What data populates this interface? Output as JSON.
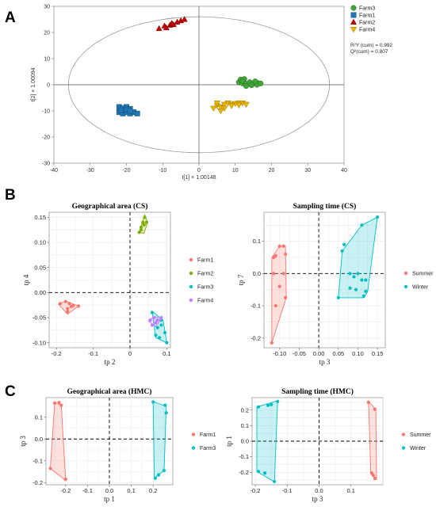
{
  "panels": [
    {
      "label": "A"
    },
    {
      "label": "B"
    },
    {
      "label": "C"
    }
  ],
  "chart_data": [
    {
      "type": "scatter",
      "panel": "A",
      "title": "",
      "xlabel": "t[1] × 1.00148",
      "ylabel": "t[2] × 1.00094",
      "xlim": [
        -40,
        40
      ],
      "ylim": [
        -30,
        30
      ],
      "xticks": [
        -40,
        -30,
        -20,
        -10,
        0,
        10,
        20,
        30,
        40
      ],
      "yticks": [
        -30,
        -20,
        -10,
        0,
        10,
        20,
        30
      ],
      "ellipse": {
        "rx": 36,
        "ry": 26
      },
      "legend_position": "top-right",
      "stats": [
        "R²Y (cum) = 0.992",
        "Q²(cum) = 0.807"
      ],
      "series": [
        {
          "name": "Farm3",
          "marker": "circle",
          "color": "#3fa535",
          "points": [
            [
              11,
              1
            ],
            [
              12,
              0.5
            ],
            [
              13,
              0.3
            ],
            [
              14,
              1
            ],
            [
              15,
              0.5
            ],
            [
              16,
              0.8
            ],
            [
              11.5,
              2
            ],
            [
              12.5,
              2.2
            ],
            [
              13,
              -0.5
            ],
            [
              14.5,
              -0.2
            ],
            [
              16,
              0
            ],
            [
              17,
              0.5
            ],
            [
              12,
              1.5
            ],
            [
              15.5,
              1.3
            ]
          ]
        },
        {
          "name": "Farm1",
          "marker": "square",
          "color": "#1f77b4",
          "points": [
            [
              -22,
              -8.5
            ],
            [
              -21,
              -9
            ],
            [
              -20,
              -8.5
            ],
            [
              -19,
              -9.2
            ],
            [
              -22,
              -10.5
            ],
            [
              -21,
              -11
            ],
            [
              -20,
              -10.5
            ],
            [
              -19,
              -11
            ],
            [
              -18,
              -10.5
            ],
            [
              -17,
              -11
            ],
            [
              -21.5,
              -9.8
            ],
            [
              -20,
              -9.5
            ],
            [
              -19,
              -10
            ]
          ]
        },
        {
          "name": "Farm2",
          "marker": "triangle-up",
          "color": "#c00000",
          "points": [
            [
              -11,
              21.5
            ],
            [
              -9.5,
              22.5
            ],
            [
              -8,
              22.8
            ],
            [
              -7,
              23
            ],
            [
              -6,
              24
            ],
            [
              -5,
              24.5
            ],
            [
              -4,
              25
            ],
            [
              -9,
              21.8
            ],
            [
              -7.5,
              23.5
            ]
          ]
        },
        {
          "name": "Farm4",
          "marker": "triangle-down",
          "color": "#e8b400",
          "points": [
            [
              4,
              -9
            ],
            [
              5,
              -8
            ],
            [
              6,
              -8.5
            ],
            [
              7,
              -7.5
            ],
            [
              8,
              -7
            ],
            [
              9,
              -7.5
            ],
            [
              10,
              -7.2
            ],
            [
              11,
              -7
            ],
            [
              12,
              -7
            ],
            [
              13,
              -7.5
            ],
            [
              5,
              -7
            ],
            [
              7,
              -9
            ],
            [
              9,
              -8
            ],
            [
              11,
              -7.8
            ],
            [
              6,
              -10
            ]
          ]
        }
      ]
    },
    {
      "type": "scatter",
      "panel": "B-left",
      "title": "Geographical area (CS)",
      "xlabel": "tp 2",
      "ylabel": "tp 4",
      "xlim": [
        -0.22,
        0.11
      ],
      "ylim": [
        -0.11,
        0.16
      ],
      "xticks": [
        -0.2,
        -0.1,
        0.0,
        0.1
      ],
      "xtick_labels": [
        "-0.2",
        "-0.1",
        "0",
        "0.1"
      ],
      "yticks": [
        -0.1,
        -0.05,
        0.0,
        0.05,
        0.1,
        0.15
      ],
      "yticks_labels": [
        "-0.10",
        "-0.05",
        "0.00",
        "0.05",
        "0.10",
        "0.15"
      ],
      "legend_position": "right",
      "series": [
        {
          "name": "Farm1",
          "color": "#f8766d",
          "points": [
            [
              -0.19,
              -0.022
            ],
            [
              -0.175,
              -0.018
            ],
            [
              -0.165,
              -0.022
            ],
            [
              -0.17,
              -0.038
            ],
            [
              -0.155,
              -0.026
            ],
            [
              -0.14,
              -0.027
            ],
            [
              -0.17,
              -0.032
            ],
            [
              -0.16,
              -0.028
            ]
          ],
          "hull": [
            [
              -0.195,
              -0.023
            ],
            [
              -0.175,
              -0.017
            ],
            [
              -0.14,
              -0.027
            ],
            [
              -0.17,
              -0.043
            ]
          ]
        },
        {
          "name": "Farm2",
          "color": "#7cae00",
          "points": [
            [
              0.025,
              0.12
            ],
            [
              0.03,
              0.13
            ],
            [
              0.035,
              0.14
            ],
            [
              0.04,
              0.15
            ],
            [
              0.045,
              0.14
            ],
            [
              0.03,
              0.125
            ],
            [
              0.038,
              0.135
            ]
          ],
          "hull": [
            [
              0.025,
              0.12
            ],
            [
              0.04,
              0.155
            ],
            [
              0.048,
              0.14
            ],
            [
              0.038,
              0.118
            ]
          ]
        },
        {
          "name": "Farm3",
          "color": "#00bfc4",
          "points": [
            [
              0.06,
              -0.04
            ],
            [
              0.075,
              -0.07
            ],
            [
              0.085,
              -0.065
            ],
            [
              0.095,
              -0.08
            ],
            [
              0.1,
              -0.1
            ],
            [
              0.08,
              -0.09
            ],
            [
              0.07,
              -0.085
            ],
            [
              0.085,
              -0.055
            ]
          ],
          "hull": [
            [
              0.06,
              -0.037
            ],
            [
              0.09,
              -0.055
            ],
            [
              0.1,
              -0.1
            ],
            [
              0.07,
              -0.09
            ]
          ]
        },
        {
          "name": "Farm4",
          "color": "#c77cff",
          "points": [
            [
              0.055,
              -0.055
            ],
            [
              0.065,
              -0.05
            ],
            [
              0.075,
              -0.055
            ],
            [
              0.085,
              -0.05
            ],
            [
              0.06,
              -0.065
            ],
            [
              0.07,
              -0.06
            ]
          ],
          "hull": [
            [
              0.05,
              -0.057
            ],
            [
              0.065,
              -0.048
            ],
            [
              0.088,
              -0.05
            ],
            [
              0.07,
              -0.068
            ]
          ]
        }
      ]
    },
    {
      "type": "scatter",
      "panel": "B-right",
      "title": "Sampling time (CS)",
      "xlabel": "tp 3",
      "ylabel": "tp 7",
      "xlim": [
        -0.14,
        0.17
      ],
      "ylim": [
        -0.23,
        0.19
      ],
      "xticks": [
        -0.1,
        -0.05,
        0.0,
        0.05,
        0.1,
        0.15
      ],
      "xtick_labels": [
        "-0.10",
        "-0.05",
        "0.00",
        "0.05",
        "0.10",
        "0.15"
      ],
      "yticks": [
        -0.2,
        -0.1,
        0.0,
        0.1
      ],
      "ytick_labels": [
        "-0.2",
        "-0.1",
        "0.0",
        "0.1"
      ],
      "legend_position": "right",
      "series": [
        {
          "name": "Summer",
          "color": "#f8766d",
          "points": [
            [
              -0.12,
              -0.215
            ],
            [
              -0.115,
              0.05
            ],
            [
              -0.11,
              0.055
            ],
            [
              -0.1,
              0.085
            ],
            [
              -0.09,
              0.085
            ],
            [
              -0.085,
              0.06
            ],
            [
              -0.09,
              0.0
            ],
            [
              -0.1,
              -0.04
            ],
            [
              -0.085,
              -0.075
            ],
            [
              -0.11,
              -0.1
            ],
            [
              -0.115,
              0.0
            ]
          ],
          "hull": [
            [
              -0.12,
              -0.215
            ],
            [
              -0.12,
              0.05
            ],
            [
              -0.1,
              0.085
            ],
            [
              -0.085,
              0.085
            ],
            [
              -0.083,
              -0.075
            ]
          ]
        },
        {
          "name": "Winter",
          "color": "#00bfc4",
          "points": [
            [
              0.05,
              -0.075
            ],
            [
              0.06,
              0.07
            ],
            [
              0.065,
              0.09
            ],
            [
              0.11,
              0.15
            ],
            [
              0.15,
              0.175
            ],
            [
              0.12,
              -0.055
            ],
            [
              0.115,
              -0.07
            ],
            [
              0.08,
              0.0
            ],
            [
              0.09,
              -0.01
            ],
            [
              0.1,
              0.0
            ],
            [
              0.08,
              -0.045
            ],
            [
              0.095,
              -0.05
            ],
            [
              0.12,
              -0.02
            ],
            [
              0.11,
              -0.02
            ]
          ],
          "hull": [
            [
              0.05,
              -0.075
            ],
            [
              0.06,
              0.07
            ],
            [
              0.11,
              0.15
            ],
            [
              0.15,
              0.175
            ],
            [
              0.125,
              -0.055
            ],
            [
              0.115,
              -0.075
            ]
          ]
        }
      ]
    },
    {
      "type": "scatter",
      "panel": "C-left",
      "title": "Geographical area (HMC)",
      "xlabel": "tp 1",
      "ylabel": "tp 3",
      "xlim": [
        -0.29,
        0.29
      ],
      "ylim": [
        -0.21,
        0.19
      ],
      "xticks": [
        -0.2,
        -0.1,
        0.0,
        0.1,
        0.2
      ],
      "xtick_labels": [
        "-0.2",
        "-0.1",
        "0.0",
        "0.1",
        "0.2"
      ],
      "yticks": [
        -0.2,
        -0.1,
        0.0,
        0.1
      ],
      "ytick_labels": [
        "-0.2",
        "-0.1",
        "0.0",
        "0.1"
      ],
      "legend_position": "right",
      "series": [
        {
          "name": "Farm1",
          "color": "#f8766d",
          "points": [
            [
              -0.25,
              0.165
            ],
            [
              -0.23,
              0.168
            ],
            [
              -0.22,
              0.155
            ],
            [
              -0.27,
              -0.135
            ],
            [
              -0.2,
              -0.185
            ]
          ],
          "hull": [
            [
              -0.25,
              0.168
            ],
            [
              -0.22,
              0.155
            ],
            [
              -0.2,
              -0.19
            ],
            [
              -0.27,
              -0.135
            ]
          ]
        },
        {
          "name": "Farm3",
          "color": "#00bfc4",
          "points": [
            [
              0.2,
              0.17
            ],
            [
              0.255,
              0.155
            ],
            [
              0.26,
              0.12
            ],
            [
              0.25,
              -0.145
            ],
            [
              0.225,
              -0.165
            ],
            [
              0.21,
              -0.18
            ]
          ],
          "hull": [
            [
              0.2,
              0.172
            ],
            [
              0.26,
              0.15
            ],
            [
              0.25,
              -0.145
            ],
            [
              0.205,
              -0.18
            ]
          ]
        }
      ]
    },
    {
      "type": "scatter",
      "panel": "C-right",
      "title": "Sampling time (HMC)",
      "xlabel": "tp 3",
      "ylabel": "tp 1",
      "xlim": [
        -0.21,
        0.2
      ],
      "ylim": [
        -0.28,
        0.28
      ],
      "xticks": [
        -0.2,
        -0.1,
        0.0,
        0.1
      ],
      "xtick_labels": [
        "-0.2",
        "-0.1",
        "0.0",
        "0.1"
      ],
      "yticks": [
        -0.2,
        -0.1,
        0.0,
        0.1,
        0.2
      ],
      "ytick_labels": [
        "-0.2",
        "-0.1",
        "0.0",
        "0.1",
        "0.2"
      ],
      "legend_position": "right",
      "series": [
        {
          "name": "Summer",
          "color": "#f8766d",
          "points": [
            [
              0.155,
              0.25
            ],
            [
              0.175,
              0.205
            ],
            [
              0.165,
              -0.205
            ],
            [
              0.175,
              -0.24
            ],
            [
              0.17,
              -0.22
            ]
          ],
          "hull": [
            [
              0.155,
              0.255
            ],
            [
              0.178,
              0.205
            ],
            [
              0.18,
              -0.245
            ],
            [
              0.162,
              -0.21
            ]
          ]
        },
        {
          "name": "Winter",
          "color": "#00bfc4",
          "points": [
            [
              -0.19,
              0.22
            ],
            [
              -0.16,
              0.23
            ],
            [
              -0.15,
              0.235
            ],
            [
              -0.13,
              0.255
            ],
            [
              -0.19,
              -0.195
            ],
            [
              -0.17,
              -0.205
            ],
            [
              -0.14,
              -0.26
            ]
          ],
          "hull": [
            [
              -0.195,
              0.22
            ],
            [
              -0.13,
              0.26
            ],
            [
              -0.14,
              -0.262
            ],
            [
              -0.195,
              -0.195
            ]
          ]
        }
      ]
    }
  ]
}
